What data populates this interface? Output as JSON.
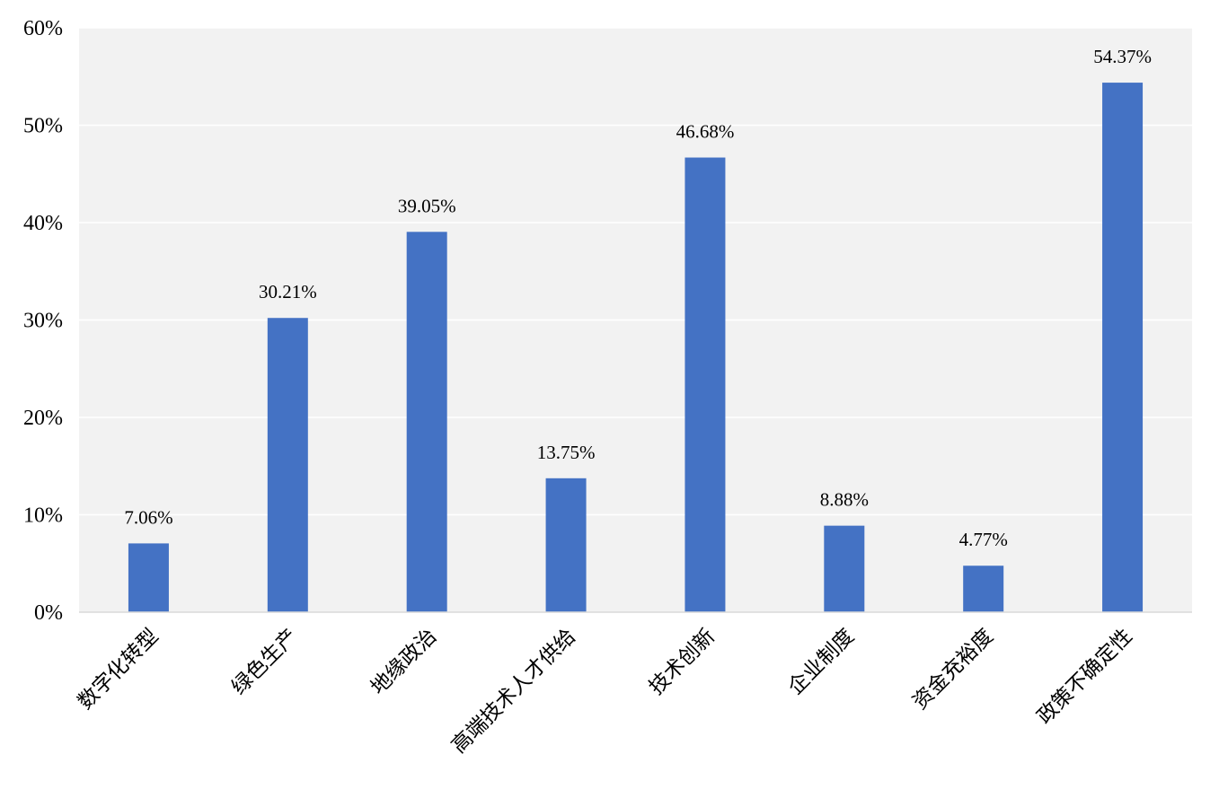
{
  "chart_data": {
    "type": "bar",
    "categories": [
      "数字化转型",
      "绿色生产",
      "地缘政治",
      "高端技术人才供给",
      "技术创新",
      "企业制度",
      "资金充裕度",
      "政策不确定性"
    ],
    "values": [
      7.06,
      30.21,
      39.05,
      13.75,
      46.68,
      8.88,
      4.77,
      54.37
    ],
    "data_labels": [
      "7.06%",
      "30.21%",
      "39.05%",
      "13.75%",
      "46.68%",
      "8.88%",
      "4.77%",
      "54.37%"
    ],
    "ylim": [
      0,
      60
    ],
    "yticks": [
      "0%",
      "10%",
      "20%",
      "30%",
      "40%",
      "50%",
      "60%"
    ],
    "title": "",
    "xlabel": "",
    "ylabel": "",
    "grid": true,
    "legend": "none",
    "colors": {
      "bar": "#4472C4",
      "plot_background": "#F2F2F2",
      "gridline": "#FFFFFF",
      "baseline": "#D9D9D9"
    }
  }
}
